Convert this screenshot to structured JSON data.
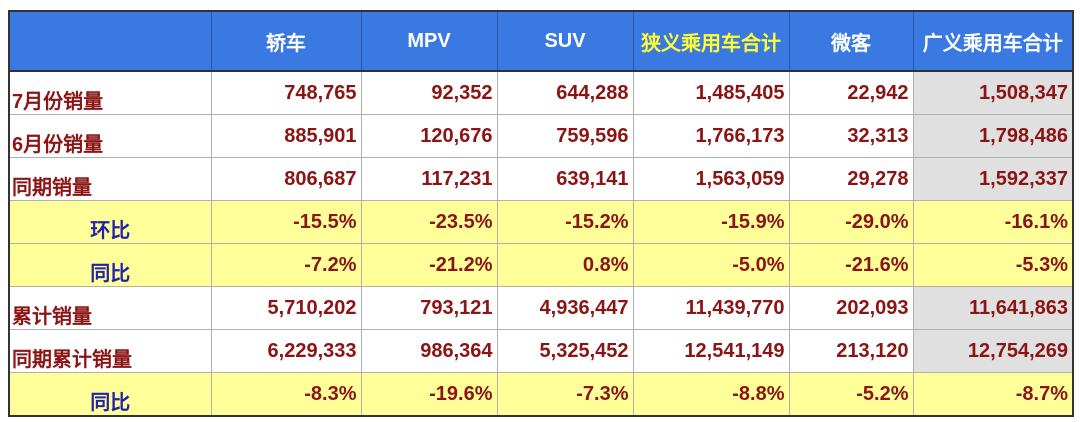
{
  "table": {
    "headers": [
      "",
      "轿车",
      "MPV",
      "SUV",
      "狭义乘用车合计",
      "微客",
      "广义乘用车合计"
    ],
    "rows": [
      {
        "label": "7月份销量",
        "values": [
          "748,765",
          "92,352",
          "644,288",
          "1,485,405",
          "22,942",
          "1,508,347"
        ],
        "kind": "count"
      },
      {
        "label": "6月份销量",
        "values": [
          "885,901",
          "120,676",
          "759,596",
          "1,766,173",
          "32,313",
          "1,798,486"
        ],
        "kind": "count"
      },
      {
        "label": "同期销量",
        "values": [
          "806,687",
          "117,231",
          "639,141",
          "1,563,059",
          "29,278",
          "1,592,337"
        ],
        "kind": "count"
      },
      {
        "label": "环比",
        "values": [
          "-15.5%",
          "-23.5%",
          "-15.2%",
          "-15.9%",
          "-29.0%",
          "-16.1%"
        ],
        "kind": "ratio"
      },
      {
        "label": "同比",
        "values": [
          "-7.2%",
          "-21.2%",
          "0.8%",
          "-5.0%",
          "-21.6%",
          "-5.3%"
        ],
        "kind": "ratio"
      },
      {
        "label": "累计销量",
        "values": [
          "5,710,202",
          "793,121",
          "4,936,447",
          "11,439,770",
          "202,093",
          "11,641,863"
        ],
        "kind": "count"
      },
      {
        "label": "同期累计销量",
        "values": [
          "6,229,333",
          "986,364",
          "5,325,452",
          "12,541,149",
          "213,120",
          "12,754,269"
        ],
        "kind": "count"
      },
      {
        "label": "同比",
        "values": [
          "-8.3%",
          "-19.6%",
          "-7.3%",
          "-8.8%",
          "-5.2%",
          "-8.7%"
        ],
        "kind": "ratio"
      }
    ]
  },
  "colors": {
    "header_bg": "#3a78e2",
    "header_text": "#ffffff",
    "header_highlight": "#ffff33",
    "value_text": "#8b1414",
    "ratio_label": "#2222aa",
    "ratio_bg": "#ffff9a",
    "total_bg": "#e0e0e0"
  }
}
